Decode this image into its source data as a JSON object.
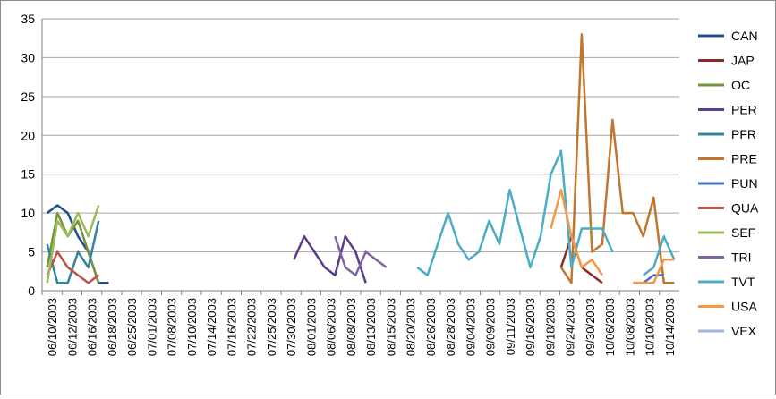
{
  "chart_data": {
    "type": "line",
    "title": "",
    "xlabel": "",
    "ylabel": "",
    "ylim": [
      0,
      35
    ],
    "yticks": [
      0,
      5,
      10,
      15,
      20,
      25,
      30,
      35
    ],
    "grid": "horizontal",
    "legend_position": "right",
    "x_tick_labels": [
      "06/10/2003",
      "06/12/2003",
      "06/16/2003",
      "06/18/2003",
      "06/25/2003",
      "07/01/2003",
      "07/08/2003",
      "07/10/2003",
      "07/14/2003",
      "07/16/2003",
      "07/22/2003",
      "07/25/2003",
      "07/30/2003",
      "08/01/2003",
      "08/06/2003",
      "08/08/2003",
      "08/13/2003",
      "08/15/2003",
      "08/20/2003",
      "08/26/2003",
      "08/28/2003",
      "09/04/2003",
      "09/09/2003",
      "09/11/2003",
      "09/16/2003",
      "09/18/2003",
      "09/24/2003",
      "09/30/2003",
      "10/06/2003",
      "10/08/2003",
      "10/10/2003",
      "10/14/2003"
    ],
    "x_count": 62,
    "series": [
      {
        "name": "CAN",
        "color": "#1f4e8c",
        "values": [
          10,
          11,
          10,
          7,
          5,
          1,
          1,
          null,
          null,
          null,
          null,
          null,
          null,
          null,
          null,
          null,
          null,
          null,
          null,
          null,
          null,
          null,
          null,
          null,
          null,
          null,
          null,
          null,
          null,
          null,
          null,
          null,
          null,
          null,
          null,
          null,
          null,
          null,
          null,
          null,
          null,
          null,
          null,
          null,
          null,
          null,
          null,
          null,
          null,
          null,
          null,
          null,
          null,
          null,
          null,
          null,
          null,
          null,
          null,
          null,
          null,
          null
        ]
      },
      {
        "name": "JAP",
        "color": "#8b2a2a",
        "values": [
          null,
          null,
          null,
          null,
          null,
          null,
          null,
          null,
          null,
          null,
          null,
          null,
          null,
          null,
          null,
          null,
          null,
          null,
          null,
          null,
          null,
          null,
          null,
          null,
          null,
          null,
          null,
          null,
          null,
          null,
          null,
          null,
          null,
          null,
          null,
          null,
          null,
          null,
          null,
          null,
          null,
          null,
          null,
          null,
          null,
          null,
          null,
          null,
          null,
          null,
          3,
          7,
          3,
          2,
          1,
          null,
          null,
          null,
          null,
          null,
          null,
          null
        ]
      },
      {
        "name": "OC",
        "color": "#77933c",
        "values": [
          3,
          10,
          7,
          9,
          5,
          1,
          null,
          null,
          null,
          null,
          null,
          null,
          null,
          null,
          null,
          null,
          null,
          null,
          null,
          null,
          null,
          null,
          null,
          null,
          null,
          null,
          null,
          null,
          null,
          null,
          null,
          null,
          null,
          null,
          null,
          null,
          null,
          null,
          null,
          null,
          null,
          null,
          null,
          null,
          null,
          null,
          null,
          null,
          null,
          null,
          null,
          null,
          null,
          null,
          null,
          null,
          null,
          null,
          null,
          null,
          null,
          null
        ]
      },
      {
        "name": "PER",
        "color": "#5a3d8c",
        "values": [
          null,
          null,
          null,
          null,
          null,
          null,
          null,
          null,
          null,
          null,
          null,
          null,
          null,
          null,
          null,
          null,
          null,
          null,
          null,
          null,
          null,
          null,
          null,
          null,
          4,
          7,
          5,
          3,
          2,
          7,
          5,
          1,
          null,
          null,
          null,
          null,
          null,
          null,
          null,
          null,
          null,
          null,
          null,
          null,
          null,
          null,
          null,
          null,
          null,
          null,
          null,
          null,
          null,
          null,
          null,
          null,
          null,
          null,
          null,
          null,
          null,
          null
        ]
      },
      {
        "name": "PFR",
        "color": "#31859c",
        "values": [
          6,
          1,
          1,
          5,
          3,
          9,
          null,
          null,
          null,
          null,
          null,
          null,
          null,
          null,
          null,
          null,
          null,
          null,
          null,
          null,
          null,
          null,
          null,
          null,
          null,
          null,
          null,
          null,
          null,
          null,
          null,
          null,
          null,
          null,
          null,
          null,
          null,
          null,
          null,
          null,
          null,
          null,
          null,
          null,
          null,
          null,
          null,
          null,
          null,
          null,
          null,
          null,
          null,
          null,
          null,
          null,
          null,
          null,
          null,
          null,
          null,
          null
        ]
      },
      {
        "name": "PRE",
        "color": "#c0762e",
        "values": [
          null,
          null,
          null,
          null,
          null,
          null,
          null,
          null,
          null,
          null,
          null,
          null,
          null,
          null,
          null,
          null,
          null,
          null,
          null,
          null,
          null,
          null,
          null,
          null,
          null,
          null,
          null,
          null,
          null,
          null,
          null,
          null,
          null,
          null,
          null,
          null,
          null,
          null,
          null,
          null,
          null,
          null,
          null,
          null,
          null,
          null,
          null,
          null,
          null,
          null,
          3,
          1,
          33,
          5,
          6,
          22,
          10,
          10,
          7,
          12,
          1,
          1
        ]
      },
      {
        "name": "PUN",
        "color": "#4472c4",
        "values": [
          null,
          null,
          null,
          null,
          null,
          null,
          null,
          null,
          null,
          null,
          null,
          null,
          null,
          null,
          null,
          null,
          null,
          null,
          null,
          null,
          null,
          null,
          null,
          null,
          null,
          null,
          null,
          null,
          null,
          null,
          null,
          null,
          null,
          null,
          null,
          null,
          null,
          null,
          null,
          null,
          null,
          null,
          null,
          null,
          null,
          null,
          null,
          null,
          null,
          null,
          null,
          null,
          null,
          null,
          null,
          null,
          null,
          null,
          1,
          2,
          2,
          null
        ]
      },
      {
        "name": "QUA",
        "color": "#c0504d",
        "values": [
          2,
          5,
          3,
          2,
          1,
          2,
          null,
          null,
          null,
          null,
          null,
          null,
          null,
          null,
          null,
          null,
          null,
          null,
          null,
          null,
          null,
          null,
          null,
          null,
          null,
          null,
          null,
          null,
          null,
          null,
          null,
          null,
          null,
          null,
          null,
          null,
          null,
          null,
          null,
          null,
          null,
          null,
          null,
          null,
          null,
          null,
          null,
          null,
          null,
          null,
          null,
          null,
          null,
          null,
          null,
          null,
          null,
          null,
          null,
          null,
          null,
          null
        ]
      },
      {
        "name": "SEF",
        "color": "#9bbb59",
        "values": [
          1,
          9,
          7,
          10,
          7,
          11,
          null,
          null,
          null,
          null,
          null,
          null,
          null,
          null,
          null,
          null,
          null,
          null,
          null,
          null,
          null,
          null,
          null,
          null,
          null,
          null,
          null,
          null,
          null,
          null,
          null,
          null,
          null,
          null,
          null,
          null,
          null,
          null,
          null,
          null,
          null,
          null,
          null,
          null,
          null,
          null,
          null,
          null,
          null,
          null,
          null,
          null,
          null,
          null,
          null,
          null,
          null,
          null,
          null,
          null,
          null,
          null
        ]
      },
      {
        "name": "TRI",
        "color": "#8064a2",
        "values": [
          null,
          null,
          null,
          null,
          null,
          null,
          null,
          null,
          null,
          null,
          null,
          null,
          null,
          null,
          null,
          null,
          null,
          null,
          null,
          null,
          null,
          null,
          null,
          null,
          null,
          null,
          null,
          null,
          7,
          3,
          2,
          5,
          4,
          3,
          null,
          null,
          null,
          null,
          null,
          null,
          null,
          null,
          null,
          null,
          null,
          null,
          null,
          null,
          null,
          null,
          null,
          null,
          null,
          null,
          null,
          null,
          null,
          null,
          null,
          null,
          null,
          null
        ]
      },
      {
        "name": "TVT",
        "color": "#4bacc6",
        "values": [
          null,
          null,
          null,
          null,
          null,
          null,
          null,
          null,
          null,
          null,
          null,
          null,
          null,
          null,
          null,
          null,
          null,
          null,
          null,
          null,
          null,
          null,
          null,
          null,
          null,
          null,
          null,
          null,
          null,
          null,
          null,
          null,
          null,
          null,
          null,
          null,
          3,
          2,
          6,
          10,
          6,
          4,
          5,
          9,
          6,
          13,
          8,
          3,
          7,
          15,
          18,
          3,
          8,
          8,
          8,
          5,
          null,
          null,
          2,
          3,
          7,
          4
        ]
      },
      {
        "name": "USA",
        "color": "#f79646",
        "values": [
          null,
          null,
          null,
          null,
          null,
          null,
          null,
          null,
          null,
          null,
          null,
          null,
          null,
          null,
          null,
          null,
          null,
          null,
          null,
          null,
          null,
          null,
          null,
          null,
          null,
          null,
          null,
          null,
          null,
          null,
          null,
          null,
          null,
          null,
          null,
          null,
          null,
          null,
          null,
          null,
          null,
          null,
          null,
          null,
          null,
          null,
          null,
          null,
          null,
          8,
          13,
          7,
          3,
          4,
          2,
          null,
          null,
          1,
          1,
          1,
          4,
          4
        ]
      },
      {
        "name": "VEX",
        "color": "#a5b6d4",
        "values": [
          null,
          null,
          null,
          null,
          null,
          null,
          null,
          null,
          null,
          null,
          null,
          null,
          null,
          null,
          null,
          null,
          null,
          null,
          null,
          null,
          null,
          null,
          null,
          null,
          null,
          null,
          null,
          null,
          null,
          null,
          null,
          null,
          null,
          null,
          null,
          null,
          null,
          null,
          null,
          null,
          null,
          null,
          null,
          null,
          null,
          null,
          null,
          null,
          null,
          null,
          null,
          null,
          null,
          null,
          null,
          null,
          null,
          null,
          null,
          null,
          null,
          null
        ]
      }
    ]
  }
}
